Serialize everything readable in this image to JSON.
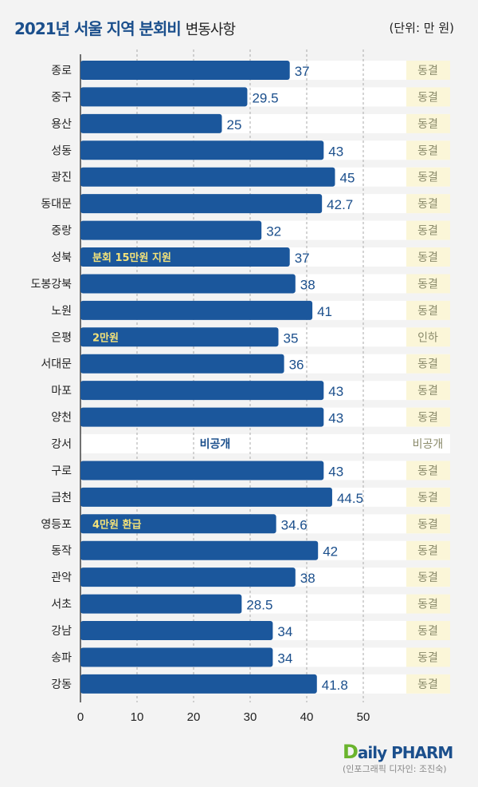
{
  "header": {
    "title": "2021년 서울 지역 분회비",
    "subtitle": "변동사항",
    "unit": "(단위: 만 원)"
  },
  "footer": {
    "logo": "DailyPHARM",
    "credit": "(인포그래픽 디자인: 조진숙)"
  },
  "colors": {
    "bar": "#1b579c",
    "value": "#1b4f8c",
    "annotation": "#f3e27a",
    "status_bg": "#fbf6d8",
    "status_text": "#8a8a6a",
    "background": "#f3f3f3"
  },
  "chart_data": {
    "type": "bar",
    "orientation": "horizontal",
    "title": "2021년 서울 지역 분회비 변동사항",
    "unit": "(단위: 만 원)",
    "xlim": [
      0,
      50
    ],
    "xticks": [
      "0",
      "10",
      "20",
      "30",
      "40",
      "50"
    ],
    "grid": true,
    "categories": [
      "종로",
      "중구",
      "용산",
      "성동",
      "광진",
      "동대문",
      "중랑",
      "성북",
      "도봉강북",
      "노원",
      "은평",
      "서대문",
      "마포",
      "양천",
      "강서",
      "구로",
      "금천",
      "영등포",
      "동작",
      "관악",
      "서초",
      "강남",
      "송파",
      "강동"
    ],
    "values": [
      37,
      29.5,
      25,
      43,
      45,
      42.7,
      32,
      37,
      38,
      41,
      35,
      36,
      43,
      43,
      null,
      43,
      44.5,
      34.6,
      42,
      38,
      28.5,
      34,
      34,
      41.8
    ],
    "value_labels": [
      "37",
      "29.5",
      "25",
      "43",
      "45",
      "42.7",
      "32",
      "37",
      "38",
      "41",
      "35",
      "36",
      "43",
      "43",
      "비공개",
      "43",
      "44.5",
      "34.6",
      "42",
      "38",
      "28.5",
      "34",
      "34",
      "41.8"
    ],
    "status": [
      "동결",
      "동결",
      "동결",
      "동결",
      "동결",
      "동결",
      "동결",
      "동결",
      "동결",
      "동결",
      "인하",
      "동결",
      "동결",
      "동결",
      "비공개",
      "동결",
      "동결",
      "동결",
      "동결",
      "동결",
      "동결",
      "동결",
      "동결",
      "동결"
    ],
    "annotations": {
      "7": "분회 15만원 지원",
      "10": "2만원",
      "17": "4만원 환급"
    }
  }
}
